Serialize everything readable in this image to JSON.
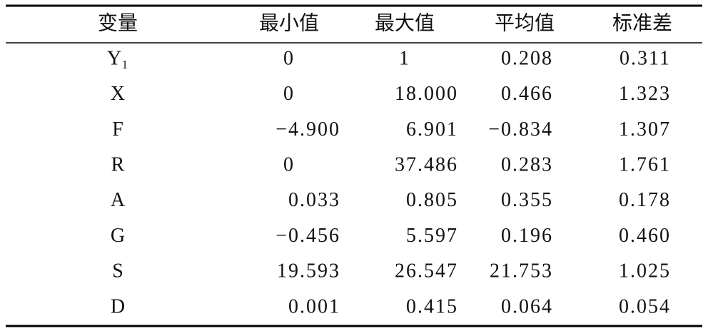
{
  "table": {
    "header": [
      "变量",
      "最小值",
      "最大值",
      "平均值",
      "标准差"
    ],
    "rows": [
      [
        "Y₁",
        "0",
        "1",
        "0.208",
        "0.311"
      ],
      [
        "X",
        "0",
        "18.000",
        "0.466",
        "1.323"
      ],
      [
        "F",
        "−4.900",
        "6.901",
        "−0.834",
        "1.307"
      ],
      [
        "R",
        "0",
        "37.486",
        "0.283",
        "1.761"
      ],
      [
        "A",
        "0.033",
        "0.805",
        "0.355",
        "0.178"
      ],
      [
        "G",
        "−0.456",
        "5.597",
        "0.196",
        "0.460"
      ],
      [
        "S",
        "19.593",
        "26.547",
        "21.753",
        "1.025"
      ],
      [
        "D",
        "0.001",
        "0.415",
        "0.064",
        "0.054"
      ]
    ]
  }
}
